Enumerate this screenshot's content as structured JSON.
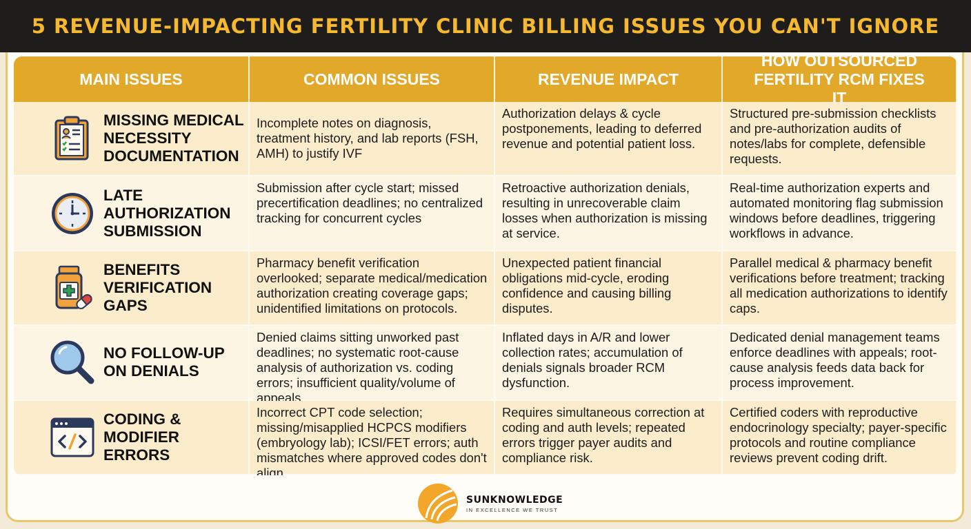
{
  "title": "5 REVENUE-IMPACTING FERTILITY CLINIC BILLING ISSUES YOU CAN'T IGNORE",
  "headers": [
    "MAIN ISSUES",
    "COMMON ISSUES",
    "REVENUE IMPACT",
    "HOW OUTSOURCED FERTILITY RCM FIXES IT"
  ],
  "rows": [
    {
      "icon": "clipboard-icon",
      "issue": "MISSING MEDICAL NECESSITY DOCUMENTATION",
      "common": "Incomplete notes on diagnosis, treatment history, and lab reports (FSH, AMH) to justify IVF",
      "impact": "Authorization delays & cycle postponements, leading to deferred revenue and potential patient loss.",
      "fix": "Structured pre-submission checklists and pre-authorization audits of notes/labs for complete, defensible requests."
    },
    {
      "icon": "clock-icon",
      "issue": "LATE AUTHORIZATION SUBMISSION",
      "common": "Submission after cycle start; missed precertification deadlines; no centralized tracking for concurrent cycles",
      "impact": "Retroactive authorization denials, resulting in unrecoverable claim losses when authorization is missing at service.",
      "fix": "Real-time authorization experts and automated monitoring flag submission windows before deadlines, triggering workflows in advance."
    },
    {
      "icon": "medicine-bottle-icon",
      "issue": "BENEFITS VERIFICATION GAPS",
      "common": "Pharmacy benefit verification overlooked; separate medical/medication authorization creating coverage gaps; unidentified limitations on protocols.",
      "impact": "Unexpected patient financial obligations mid-cycle, eroding confidence and causing billing disputes.",
      "fix": "Parallel medical & pharmacy benefit verifications before treatment; tracking all medication authorizations to identify caps."
    },
    {
      "icon": "magnifying-glass-icon",
      "issue": "NO FOLLOW-UP ON DENIALS",
      "common": "Denied claims sitting unworked past deadlines; no systematic root-cause analysis of authorization vs. coding errors; insufficient quality/volume of appeals.",
      "impact": "Inflated days in A/R and lower collection rates; accumulation of denials signals broader RCM dysfunction.",
      "fix": "Dedicated denial management teams enforce deadlines with appeals; root-cause analysis feeds data back for process improvement."
    },
    {
      "icon": "code-window-icon",
      "issue": "CODING & MODIFIER ERRORS",
      "common": "Incorrect CPT code selection; missing/misapplied HCPCS modifiers (embryology lab); ICSI/FET errors; auth mismatches where approved codes don't align.",
      "impact": "Requires simultaneous correction at coding and auth levels; repeated errors trigger payer audits and compliance risk.",
      "fix": "Certified coders with reproductive endocrinology specialty; payer-specific protocols and routine compliance reviews prevent coding drift."
    }
  ],
  "logo": {
    "name": "SUNKNOWLEDGE",
    "tagline": "IN EXCELLENCE WE TRUST"
  },
  "colors": {
    "title_bg": "#1e1d1b",
    "title_text": "#f5b82e",
    "header_bg": "#e1a82a",
    "row_alt_a": "#fbeccb",
    "row_alt_b": "#fdf5e3",
    "icon_navy": "#2b3a5c",
    "icon_orange": "#f2a23a"
  }
}
